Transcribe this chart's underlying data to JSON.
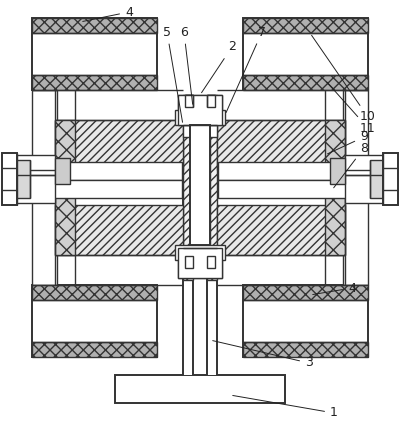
{
  "background": "#ffffff",
  "line_color": "#333333",
  "figsize": [
    4.0,
    4.23
  ],
  "dpi": 100,
  "ann_color": "#222222",
  "fs": 9.0,
  "lw": 1.0,
  "lw2": 1.4
}
